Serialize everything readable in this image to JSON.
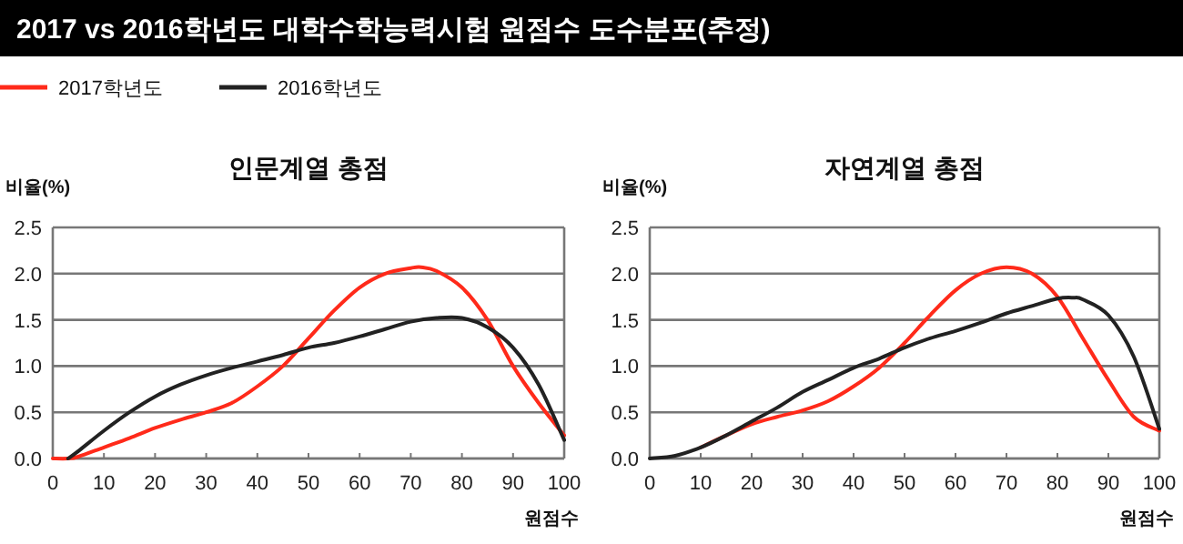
{
  "chart_data": [
    {
      "type": "line",
      "title": "인문계열 총점",
      "annotations": [
        "2017 vs 2016학년도 대학수학능력시험 원점수 도수분포(추정)"
      ],
      "ylabel": "비율(%)",
      "xlabel": "원점수",
      "legend": "top",
      "grid": "y",
      "xlim": [
        0,
        100
      ],
      "xticks": [
        0,
        10,
        20,
        30,
        40,
        50,
        60,
        70,
        80,
        90,
        100
      ],
      "ylim": [
        0,
        2.5
      ],
      "yticks": [
        {
          "value": 0,
          "label": "0.0"
        },
        {
          "value": 0.5,
          "label": "0.5"
        },
        {
          "value": 1,
          "label": "1.0"
        },
        {
          "value": 1.5,
          "label": "1.5"
        },
        {
          "value": 2,
          "label": "2.0"
        },
        {
          "value": 2.5,
          "label": "2.5"
        }
      ],
      "series": [
        {
          "name": "2017학년도",
          "color": "#ff2a1a",
          "x": [
            0,
            3,
            5,
            10,
            15,
            20,
            25,
            30,
            35,
            40,
            45,
            50,
            55,
            60,
            65,
            70,
            72,
            75,
            80,
            85,
            90,
            95,
            100
          ],
          "values": [
            0,
            0,
            0.02,
            0.12,
            0.22,
            0.33,
            0.42,
            0.5,
            0.6,
            0.78,
            1.0,
            1.3,
            1.6,
            1.85,
            2.0,
            2.06,
            2.07,
            2.03,
            1.85,
            1.5,
            1.0,
            0.6,
            0.25
          ]
        },
        {
          "name": "2016학년도",
          "color": "#222222",
          "x": [
            3,
            5,
            10,
            15,
            20,
            25,
            30,
            35,
            40,
            45,
            50,
            55,
            60,
            65,
            70,
            75,
            80,
            85,
            90,
            95,
            100
          ],
          "values": [
            0,
            0.08,
            0.3,
            0.5,
            0.67,
            0.8,
            0.9,
            0.98,
            1.05,
            1.12,
            1.2,
            1.25,
            1.32,
            1.4,
            1.48,
            1.52,
            1.52,
            1.42,
            1.2,
            0.8,
            0.2
          ]
        }
      ]
    },
    {
      "type": "line",
      "title": "자연계열 총점",
      "ylabel": "비율(%)",
      "xlabel": "원점수",
      "grid": "y",
      "xlim": [
        0,
        100
      ],
      "xticks": [
        0,
        10,
        20,
        30,
        40,
        50,
        60,
        70,
        80,
        90,
        100
      ],
      "ylim": [
        0,
        2.5
      ],
      "yticks": [
        {
          "value": 0,
          "label": "0.0"
        },
        {
          "value": 0.5,
          "label": "0.5"
        },
        {
          "value": 1,
          "label": "1.0"
        },
        {
          "value": 1.5,
          "label": "1.5"
        },
        {
          "value": 2,
          "label": "2.0"
        },
        {
          "value": 2.5,
          "label": "2.5"
        }
      ],
      "series": [
        {
          "color": "#ff2a1a",
          "x": [
            10,
            15,
            20,
            25,
            30,
            35,
            40,
            45,
            50,
            55,
            60,
            65,
            70,
            75,
            80,
            85,
            90,
            95,
            100
          ],
          "values": [
            0.12,
            0.25,
            0.37,
            0.45,
            0.52,
            0.62,
            0.78,
            0.98,
            1.25,
            1.55,
            1.82,
            2.0,
            2.07,
            2.0,
            1.75,
            1.3,
            0.85,
            0.45,
            0.3
          ]
        },
        {
          "color": "#222222",
          "x": [
            0,
            5,
            10,
            15,
            20,
            25,
            30,
            35,
            40,
            45,
            50,
            55,
            60,
            65,
            70,
            75,
            80,
            83,
            85,
            90,
            95,
            100
          ],
          "values": [
            0,
            0.03,
            0.12,
            0.25,
            0.4,
            0.55,
            0.72,
            0.85,
            0.98,
            1.08,
            1.2,
            1.3,
            1.38,
            1.47,
            1.57,
            1.65,
            1.73,
            1.74,
            1.72,
            1.55,
            1.1,
            0.32
          ]
        }
      ]
    }
  ]
}
